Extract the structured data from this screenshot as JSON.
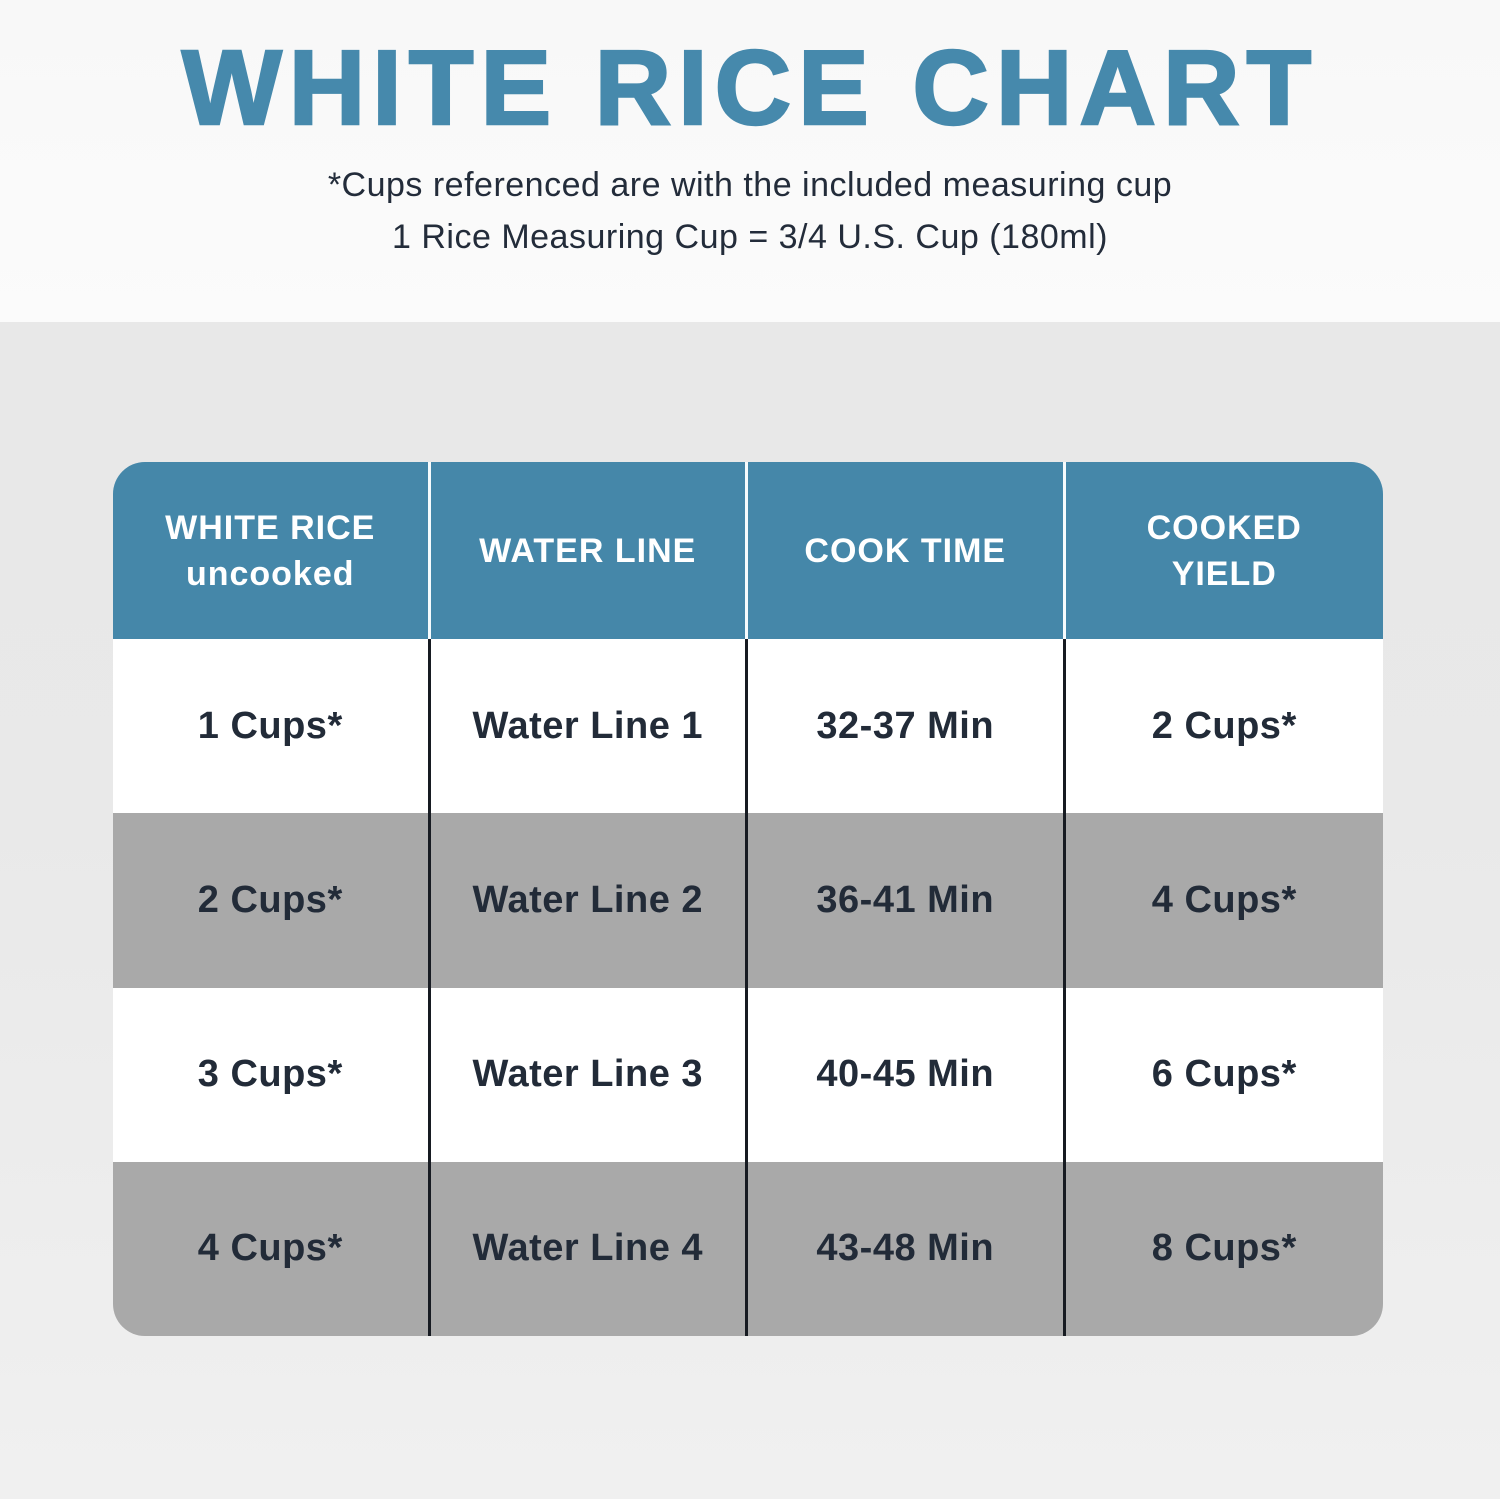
{
  "page": {
    "title": "WHITE RICE CHART",
    "subtitle_line1": "*Cups referenced are with the included measuring cup",
    "subtitle_line2": "1 Rice Measuring Cup = 3/4 U.S. Cup (180ml)"
  },
  "colors": {
    "accent_teal": "#4587a9",
    "title_teal": "#4689ac",
    "dark_text": "#222b38",
    "gray_row": "#a9a9a9",
    "white_row": "#ffffff",
    "header_divider": "#f6fbfd",
    "body_divider": "#171b22",
    "bg_top": "#fbfbfb",
    "bg_bottom": "#f0f0f0"
  },
  "table": {
    "headers": [
      {
        "line1": "WHITE RICE",
        "line2": "uncooked"
      },
      {
        "line1": "WATER LINE",
        "line2": ""
      },
      {
        "line1": "COOK TIME",
        "line2": ""
      },
      {
        "line1": "COOKED",
        "line2": "YIELD"
      }
    ],
    "rows": [
      {
        "cells": [
          "1 Cups*",
          "Water Line 1",
          "32-37 Min",
          "2 Cups*"
        ]
      },
      {
        "cells": [
          "2 Cups*",
          "Water Line 2",
          "36-41 Min",
          "4 Cups*"
        ]
      },
      {
        "cells": [
          "3 Cups*",
          "Water Line 3",
          "40-45 Min",
          "6 Cups*"
        ]
      },
      {
        "cells": [
          "4 Cups*",
          "Water Line 4",
          "43-48 Min",
          "8 Cups*"
        ]
      }
    ]
  },
  "chart_data": {
    "type": "table",
    "title": "WHITE RICE CHART",
    "subtitle": "*Cups referenced are with the included measuring cup | 1 Rice Measuring Cup = 3/4 U.S. Cup (180ml)",
    "columns": [
      "WHITE RICE uncooked",
      "WATER LINE",
      "COOK TIME",
      "COOKED YIELD"
    ],
    "rows": [
      [
        "1 Cups*",
        "Water Line 1",
        "32-37 Min",
        "2 Cups*"
      ],
      [
        "2 Cups*",
        "Water Line 2",
        "36-41 Min",
        "4 Cups*"
      ],
      [
        "3 Cups*",
        "Water Line 3",
        "40-45 Min",
        "6 Cups*"
      ],
      [
        "4 Cups*",
        "Water Line 4",
        "43-48 Min",
        "8 Cups*"
      ]
    ],
    "layout_hints": {
      "header_background": "#4587a9",
      "row_striping": [
        "white",
        "gray",
        "white",
        "gray"
      ],
      "equal_column_widths": true
    }
  }
}
